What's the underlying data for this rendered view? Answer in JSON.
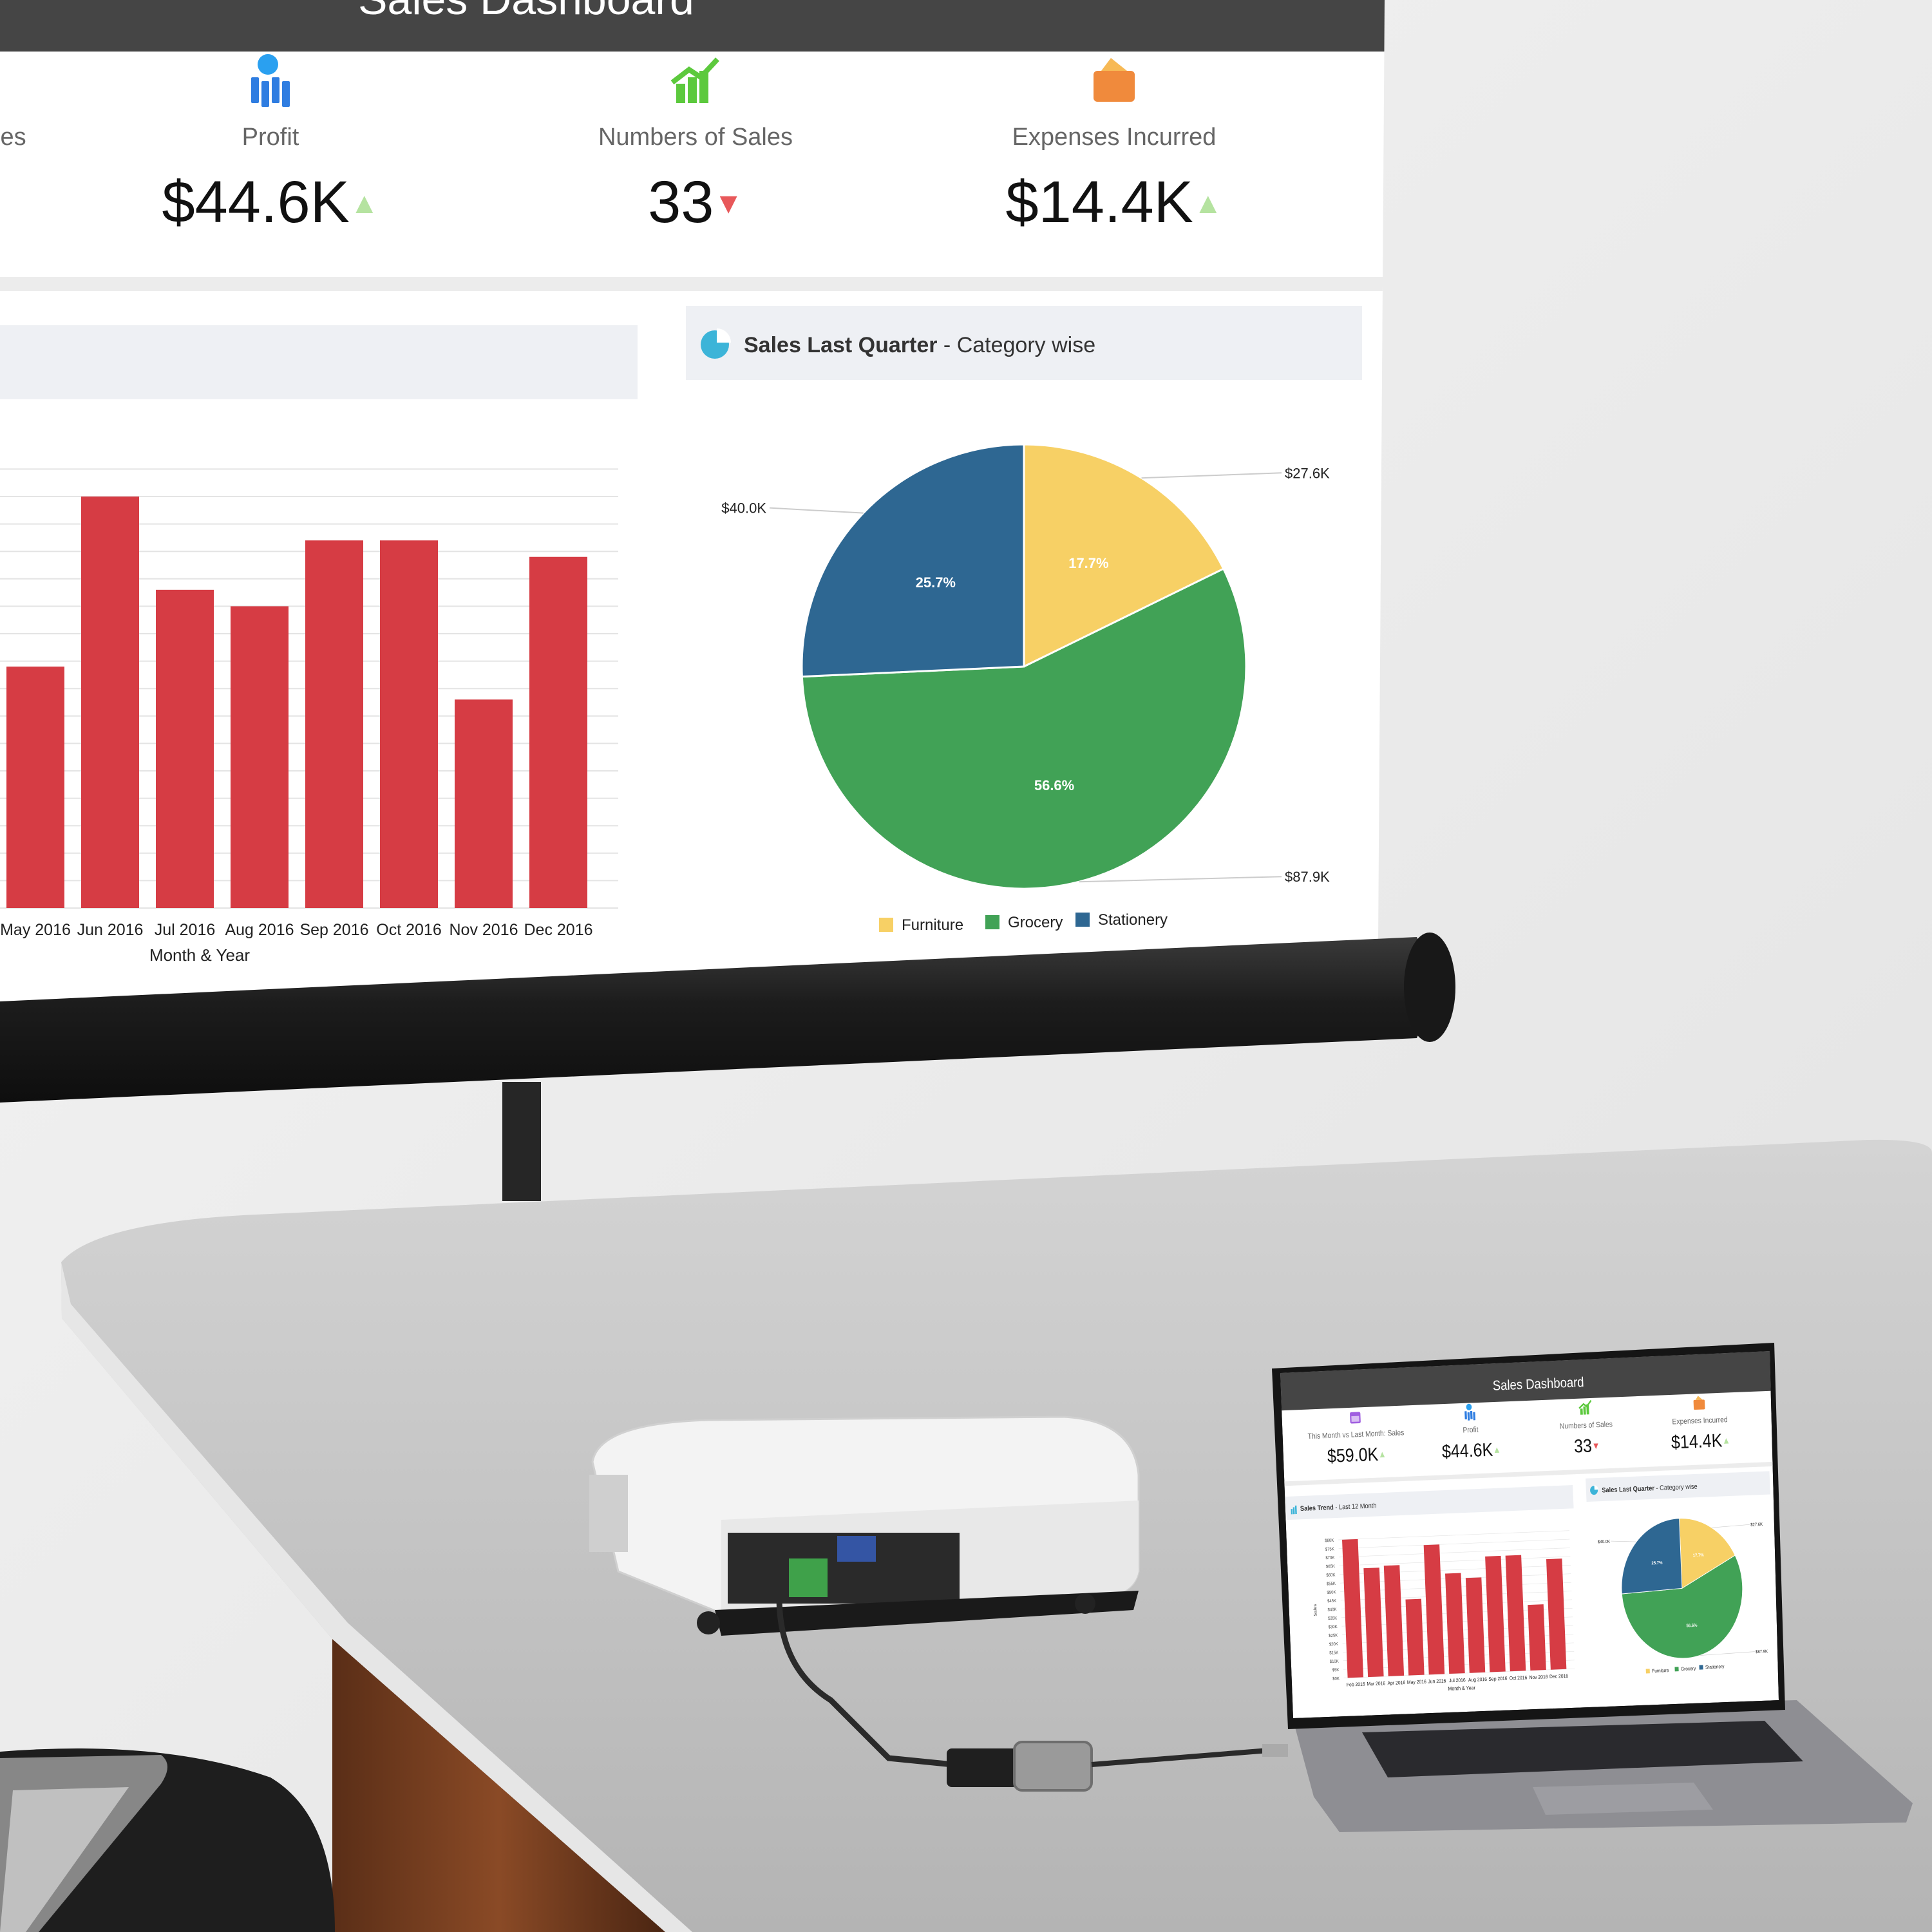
{
  "dashboard": {
    "title": "Sales Dashboard",
    "kpis": [
      {
        "label": "This Month vs Last Month: Sales",
        "value": "$59.0K",
        "trend": "up",
        "icon": "calendar-icon",
        "icon_color": "#a05ee0"
      },
      {
        "label": "Profit",
        "value": "$44.6K",
        "trend": "up",
        "icon": "profit-chart-icon",
        "icon_color": "#2f7de1"
      },
      {
        "label": "Numbers of Sales",
        "value": "33",
        "trend": "down",
        "icon": "growth-chart-icon",
        "icon_color": "#5cc93d"
      },
      {
        "label": "Expenses Incurred",
        "value": "$14.4K",
        "trend": "up",
        "icon": "wallet-icon",
        "icon_color": "#f08a3c"
      }
    ],
    "trend_colors": {
      "up": "#b5e3a0",
      "down": "#e8585a"
    },
    "bar_panel": {
      "title_bold": "Sales Trend",
      "title_rest": " - Last 12 Month",
      "icon": "bar-chart-icon"
    },
    "pie_panel": {
      "title_bold": "Sales Last Quarter",
      "title_rest": " - Category wise",
      "icon": "pie-chart-icon"
    }
  },
  "chart_data": [
    {
      "type": "bar",
      "categories": [
        "Feb 2016",
        "Mar 2016",
        "Apr 2016",
        "May 2016",
        "Jun 2016",
        "Jul 2016",
        "Aug 2016",
        "Sep 2016",
        "Oct 2016",
        "Nov 2016",
        "Dec 2016"
      ],
      "values": [
        80,
        63,
        64,
        44,
        75,
        58,
        55,
        67,
        67,
        38,
        64
      ],
      "value_unit": "$K",
      "xlabel": "Month & Year",
      "ylabel": "Sales",
      "ylim": [
        0,
        80
      ],
      "ytick_step": 5,
      "ytick_format": "${v}K",
      "color": "#d63c44",
      "grid": true
    },
    {
      "type": "pie",
      "categories": [
        "Furniture",
        "Grocery",
        "Stationery"
      ],
      "values": [
        27.6,
        87.9,
        40.0
      ],
      "value_labels": [
        "$27.6K",
        "$87.9K",
        "$40.0K"
      ],
      "percent_labels": [
        "17.7%",
        "56.6%",
        "25.7%"
      ],
      "colors": [
        "#f7d065",
        "#41a256",
        "#2e6792"
      ],
      "legend": "bottom"
    }
  ]
}
